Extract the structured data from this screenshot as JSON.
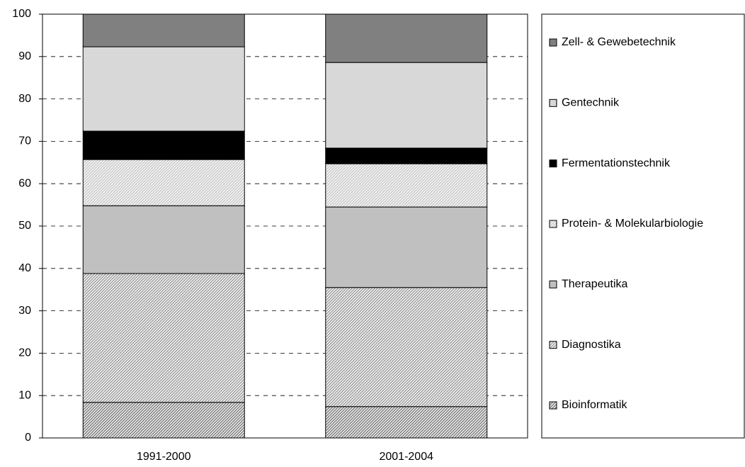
{
  "chart_data": {
    "type": "stacked_bar",
    "categories": [
      "1991-2000",
      "2001-2004"
    ],
    "series": [
      {
        "name": "Bioinformatik",
        "color": "#808080",
        "pattern": "diagonal",
        "values": [
          8.4,
          7.4
        ]
      },
      {
        "name": "Diagnostika",
        "color": "#a0a0a0",
        "pattern": "diagonal",
        "values": [
          30.4,
          28.1
        ]
      },
      {
        "name": "Therapeutika",
        "color": "#c0c0c0",
        "pattern": "none",
        "values": [
          16.0,
          19.0
        ]
      },
      {
        "name": "Protein- & Molekularbiologie",
        "color": "#c8c8c8",
        "pattern": "diagonal",
        "values": [
          10.9,
          10.2
        ]
      },
      {
        "name": "Fermentationstechnik",
        "color": "#000000",
        "pattern": "none",
        "values": [
          6.7,
          3.7
        ]
      },
      {
        "name": "Gentechnik",
        "color": "#b0b0b0",
        "pattern": "vertical",
        "values": [
          19.9,
          20.2
        ]
      },
      {
        "name": "Zell- & Gewebetechnik",
        "color": "#808080",
        "pattern": "none",
        "values": [
          7.7,
          11.4
        ]
      }
    ],
    "ylim": [
      0,
      100
    ],
    "yticks": [
      0,
      10,
      20,
      30,
      40,
      50,
      60,
      70,
      80,
      90,
      100
    ],
    "grid": true,
    "legend": "right"
  }
}
